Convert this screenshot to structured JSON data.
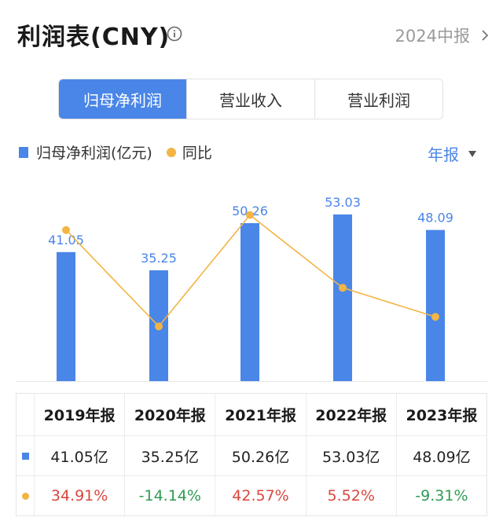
{
  "header": {
    "title": "利润表(CNY)",
    "period": "2024中报"
  },
  "tabs": [
    {
      "label": "归母净利润",
      "active": true
    },
    {
      "label": "营业收入",
      "active": false
    },
    {
      "label": "营业利润",
      "active": false
    }
  ],
  "legend": {
    "bar_label": "归母净利润(亿元)",
    "line_label": "同比",
    "dropdown": "年报"
  },
  "colors": {
    "bar": "#4a86e8",
    "line": "#f2b544",
    "positive": "#d9473d",
    "negative": "#2e9b53"
  },
  "chart_data": {
    "type": "bar",
    "categories": [
      "2019年报",
      "2020年报",
      "2021年报",
      "2022年报",
      "2023年报"
    ],
    "series": [
      {
        "name": "归母净利润(亿元)",
        "type": "bar",
        "values": [
          41.05,
          35.25,
          50.26,
          53.03,
          48.09
        ]
      },
      {
        "name": "同比",
        "type": "line",
        "values": [
          34.91,
          -14.14,
          42.57,
          5.52,
          -9.31
        ]
      }
    ],
    "bar_labels": [
      "41.05",
      "35.25",
      "50.26",
      "53.03",
      "48.09"
    ]
  },
  "table": {
    "headers": [
      "2019年报",
      "2020年报",
      "2021年报",
      "2022年报",
      "2023年报"
    ],
    "profit_row": [
      "41.05亿",
      "35.25亿",
      "50.26亿",
      "53.03亿",
      "48.09亿"
    ],
    "yoy_row": [
      "34.91%",
      "-14.14%",
      "42.57%",
      "5.52%",
      "-9.31%"
    ]
  }
}
